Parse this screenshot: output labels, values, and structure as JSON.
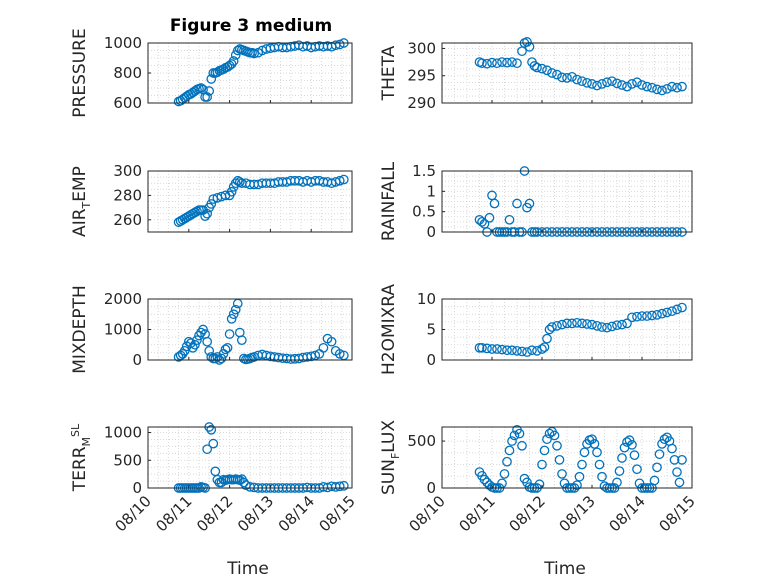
{
  "figure_title": "Figure 3 medium",
  "colors": {
    "marker": "#0072BD",
    "axis": "#262626",
    "grid": "#d9d9d9"
  },
  "chart_data": [
    {
      "type": "scatter",
      "title": "Figure 3 medium",
      "ylabel_main": "PRESSURE",
      "ylabel_sub": "",
      "xlabel": "",
      "xlim": [
        "08/10",
        "08/15"
      ],
      "ylim": [
        600,
        1000
      ],
      "yticks": [
        600,
        800,
        1000
      ],
      "xticks": [
        "08/10",
        "08/11",
        "08/12",
        "08/13",
        "08/14",
        "08/15"
      ],
      "grid": "on",
      "x": [
        0.75,
        0.8,
        0.85,
        0.9,
        0.95,
        1.0,
        1.05,
        1.1,
        1.15,
        1.2,
        1.25,
        1.3,
        1.35,
        1.4,
        1.45,
        1.5,
        1.55,
        1.6,
        1.65,
        1.7,
        1.75,
        1.8,
        1.85,
        1.9,
        1.95,
        2.0,
        2.05,
        2.1,
        2.15,
        2.2,
        2.25,
        2.3,
        2.35,
        2.4,
        2.45,
        2.5,
        2.55,
        2.6,
        2.7,
        2.8,
        2.9,
        3.0,
        3.1,
        3.2,
        3.3,
        3.4,
        3.5,
        3.6,
        3.7,
        3.8,
        3.9,
        4.0,
        4.1,
        4.2,
        4.3,
        4.4,
        4.5,
        4.6,
        4.7,
        4.8
      ],
      "y": [
        610,
        615,
        625,
        635,
        645,
        655,
        660,
        670,
        680,
        690,
        695,
        700,
        690,
        640,
        640,
        680,
        760,
        800,
        800,
        805,
        815,
        820,
        825,
        835,
        840,
        850,
        860,
        880,
        920,
        950,
        960,
        955,
        950,
        945,
        940,
        935,
        935,
        930,
        935,
        950,
        960,
        965,
        970,
        975,
        970,
        970,
        975,
        980,
        985,
        975,
        980,
        970,
        975,
        980,
        975,
        980,
        975,
        985,
        990,
        1000
      ]
    },
    {
      "type": "scatter",
      "title": "",
      "ylabel_main": "THETA",
      "ylabel_sub": "",
      "xlabel": "",
      "xlim": [
        "08/10",
        "08/15"
      ],
      "ylim": [
        290,
        301
      ],
      "yticks": [
        290,
        295,
        300
      ],
      "xticks": [
        "08/10",
        "08/11",
        "08/12",
        "08/13",
        "08/14",
        "08/15"
      ],
      "grid": "on",
      "x": [
        0.75,
        0.8,
        0.9,
        1.0,
        1.1,
        1.2,
        1.3,
        1.4,
        1.5,
        1.6,
        1.65,
        1.7,
        1.75,
        1.8,
        1.85,
        1.9,
        2.0,
        2.1,
        2.2,
        2.3,
        2.4,
        2.5,
        2.6,
        2.7,
        2.8,
        2.9,
        3.0,
        3.1,
        3.2,
        3.3,
        3.4,
        3.5,
        3.6,
        3.7,
        3.8,
        3.9,
        4.0,
        4.1,
        4.2,
        4.3,
        4.4,
        4.5,
        4.6,
        4.7,
        4.8
      ],
      "y": [
        297.5,
        297.3,
        297.2,
        297.4,
        297.3,
        297.5,
        297.4,
        297.5,
        297.3,
        299.5,
        301,
        301.2,
        300.3,
        297.5,
        296.8,
        296.5,
        296.3,
        296.0,
        295.5,
        295.2,
        294.7,
        294.6,
        294.8,
        294.3,
        294.0,
        293.7,
        293.5,
        293.2,
        293.5,
        293.8,
        294.0,
        293.6,
        293.3,
        293.0,
        293.5,
        293.8,
        293.3,
        293.0,
        292.8,
        292.5,
        292.3,
        292.6,
        293.0,
        292.8,
        293.0
      ]
    },
    {
      "type": "scatter",
      "title": "",
      "ylabel_main": "AIR",
      "ylabel_sub": "T",
      "ylabel_rest": "EMP",
      "xlabel": "",
      "xlim": [
        "08/10",
        "08/15"
      ],
      "ylim": [
        250,
        300
      ],
      "yticks": [
        260,
        280,
        300
      ],
      "xticks": [
        "08/10",
        "08/11",
        "08/12",
        "08/13",
        "08/14",
        "08/15"
      ],
      "grid": "on",
      "x": [
        0.75,
        0.8,
        0.85,
        0.9,
        0.95,
        1.0,
        1.05,
        1.1,
        1.15,
        1.2,
        1.25,
        1.3,
        1.35,
        1.4,
        1.45,
        1.5,
        1.55,
        1.6,
        1.7,
        1.8,
        1.9,
        2.0,
        2.05,
        2.1,
        2.15,
        2.2,
        2.25,
        2.3,
        2.4,
        2.5,
        2.6,
        2.7,
        2.8,
        2.9,
        3.0,
        3.1,
        3.2,
        3.3,
        3.4,
        3.5,
        3.6,
        3.7,
        3.8,
        3.9,
        4.0,
        4.1,
        4.2,
        4.3,
        4.4,
        4.5,
        4.6,
        4.7,
        4.8
      ],
      "y": [
        258,
        259,
        260,
        261,
        262,
        263,
        264,
        265,
        266,
        267,
        268,
        268,
        268,
        263,
        265,
        270,
        273,
        277,
        278,
        279,
        280,
        280,
        283,
        287,
        290,
        292,
        291,
        290,
        290,
        289,
        289,
        289,
        290,
        290,
        290,
        290,
        291,
        291,
        291,
        292,
        292,
        292,
        291,
        292,
        291,
        292,
        292,
        291,
        291,
        290,
        291,
        292,
        293
      ]
    },
    {
      "type": "scatter",
      "title": "",
      "ylabel_main": "RAINFALL",
      "ylabel_sub": "",
      "xlabel": "",
      "xlim": [
        "08/10",
        "08/15"
      ],
      "ylim": [
        0,
        1.5
      ],
      "yticks": [
        0,
        0.5,
        1,
        1.5
      ],
      "xticks": [
        "08/10",
        "08/11",
        "08/12",
        "08/13",
        "08/14",
        "08/15"
      ],
      "grid": "on",
      "x": [
        0.75,
        0.8,
        0.85,
        0.9,
        0.95,
        1.0,
        1.05,
        1.1,
        1.15,
        1.2,
        1.25,
        1.3,
        1.35,
        1.4,
        1.45,
        1.5,
        1.55,
        1.6,
        1.65,
        1.7,
        1.75,
        1.8,
        1.85,
        1.9,
        2.0,
        2.1,
        2.2,
        2.3,
        2.4,
        2.5,
        2.6,
        2.7,
        2.8,
        2.9,
        3.0,
        3.1,
        3.2,
        3.3,
        3.4,
        3.5,
        3.6,
        3.7,
        3.8,
        3.9,
        4.0,
        4.1,
        4.2,
        4.3,
        4.4,
        4.5,
        4.6,
        4.7,
        4.8
      ],
      "y": [
        0.3,
        0.25,
        0.2,
        0,
        0.35,
        0.9,
        0.7,
        0,
        0,
        0,
        0,
        0,
        0.3,
        0,
        0,
        0.7,
        0,
        0,
        1.5,
        0.6,
        0.7,
        0,
        0,
        0,
        0,
        0,
        0,
        0,
        0,
        0,
        0,
        0,
        0,
        0,
        0,
        0,
        0,
        0,
        0,
        0,
        0,
        0,
        0,
        0,
        0,
        0,
        0,
        0,
        0,
        0,
        0,
        0,
        0
      ]
    },
    {
      "type": "scatter",
      "title": "",
      "ylabel_main": "MIXDEPTH",
      "ylabel_sub": "",
      "xlabel": "",
      "xlim": [
        "08/10",
        "08/15"
      ],
      "ylim": [
        0,
        2000
      ],
      "yticks": [
        0,
        1000,
        2000
      ],
      "xticks": [
        "08/10",
        "08/11",
        "08/12",
        "08/13",
        "08/14",
        "08/15"
      ],
      "grid": "on",
      "x": [
        0.75,
        0.8,
        0.85,
        0.9,
        0.95,
        1.0,
        1.05,
        1.1,
        1.15,
        1.2,
        1.25,
        1.3,
        1.35,
        1.4,
        1.45,
        1.5,
        1.55,
        1.6,
        1.65,
        1.7,
        1.75,
        1.8,
        1.85,
        1.9,
        1.95,
        2.0,
        2.05,
        2.1,
        2.15,
        2.2,
        2.25,
        2.3,
        2.35,
        2.4,
        2.45,
        2.5,
        2.55,
        2.6,
        2.7,
        2.8,
        2.9,
        3.0,
        3.1,
        3.2,
        3.3,
        3.4,
        3.5,
        3.6,
        3.7,
        3.8,
        3.9,
        4.0,
        4.1,
        4.2,
        4.3,
        4.4,
        4.5,
        4.6,
        4.7,
        4.8
      ],
      "y": [
        100,
        150,
        200,
        300,
        450,
        600,
        550,
        400,
        500,
        650,
        800,
        900,
        1000,
        850,
        600,
        300,
        100,
        50,
        50,
        100,
        0,
        50,
        200,
        350,
        400,
        850,
        1350,
        1500,
        1650,
        1850,
        900,
        650,
        50,
        20,
        30,
        50,
        80,
        100,
        150,
        180,
        150,
        120,
        100,
        80,
        60,
        50,
        30,
        40,
        50,
        80,
        100,
        120,
        150,
        200,
        400,
        700,
        600,
        300,
        200,
        150
      ]
    },
    {
      "type": "scatter",
      "title": "",
      "ylabel_main": "H2OMIXRA",
      "ylabel_sub": "",
      "xlabel": "",
      "xlim": [
        "08/10",
        "08/15"
      ],
      "ylim": [
        0,
        10
      ],
      "yticks": [
        0,
        5,
        10
      ],
      "xticks": [
        "08/10",
        "08/11",
        "08/12",
        "08/13",
        "08/14",
        "08/15"
      ],
      "grid": "on",
      "x": [
        0.75,
        0.8,
        0.9,
        1.0,
        1.1,
        1.2,
        1.3,
        1.4,
        1.5,
        1.6,
        1.7,
        1.8,
        1.9,
        2.0,
        2.05,
        2.1,
        2.15,
        2.2,
        2.3,
        2.4,
        2.5,
        2.6,
        2.7,
        2.8,
        2.9,
        3.0,
        3.1,
        3.2,
        3.3,
        3.4,
        3.5,
        3.6,
        3.7,
        3.8,
        3.9,
        4.0,
        4.1,
        4.2,
        4.3,
        4.4,
        4.5,
        4.6,
        4.7,
        4.8
      ],
      "y": [
        2.0,
        2.0,
        1.9,
        1.8,
        1.8,
        1.7,
        1.6,
        1.6,
        1.5,
        1.4,
        1.3,
        1.6,
        1.5,
        1.8,
        2.1,
        3.5,
        5.0,
        5.4,
        5.6,
        5.8,
        6.0,
        6.0,
        6.1,
        6.0,
        5.9,
        5.8,
        5.6,
        5.4,
        5.3,
        5.5,
        5.7,
        5.8,
        6.0,
        7.0,
        7.1,
        7.2,
        7.2,
        7.3,
        7.4,
        7.6,
        7.8,
        8.0,
        8.3,
        8.6
      ]
    },
    {
      "type": "scatter",
      "title": "",
      "ylabel_main": "TERR",
      "ylabel_sub": "M",
      "ylabel_sup": "SL",
      "xlabel": "Time",
      "xlim": [
        "08/10",
        "08/15"
      ],
      "ylim": [
        0,
        1100
      ],
      "yticks": [
        0,
        500,
        1000
      ],
      "xticks": [
        "08/10",
        "08/11",
        "08/12",
        "08/13",
        "08/14",
        "08/15"
      ],
      "grid": "on",
      "x": [
        0.75,
        0.8,
        0.85,
        0.9,
        0.95,
        1.0,
        1.05,
        1.1,
        1.15,
        1.2,
        1.25,
        1.3,
        1.35,
        1.4,
        1.45,
        1.5,
        1.55,
        1.6,
        1.65,
        1.7,
        1.75,
        1.8,
        1.85,
        1.9,
        1.95,
        2.0,
        2.05,
        2.1,
        2.15,
        2.2,
        2.25,
        2.3,
        2.35,
        2.4,
        2.5,
        2.6,
        2.7,
        2.8,
        2.9,
        3.0,
        3.1,
        3.2,
        3.3,
        3.4,
        3.5,
        3.6,
        3.7,
        3.8,
        3.9,
        4.0,
        4.1,
        4.2,
        4.3,
        4.4,
        4.5,
        4.6,
        4.7,
        4.8
      ],
      "y": [
        0,
        0,
        0,
        0,
        0,
        0,
        0,
        0,
        0,
        0,
        0,
        20,
        10,
        0,
        700,
        1100,
        1050,
        800,
        300,
        150,
        100,
        100,
        150,
        140,
        150,
        160,
        150,
        150,
        160,
        150,
        140,
        160,
        100,
        50,
        20,
        10,
        0,
        0,
        0,
        0,
        0,
        0,
        0,
        0,
        0,
        0,
        0,
        0,
        10,
        0,
        0,
        0,
        20,
        10,
        30,
        20,
        30,
        40
      ]
    },
    {
      "type": "scatter",
      "title": "",
      "ylabel_main": "SUN",
      "ylabel_sub": "F",
      "ylabel_rest": "LUX",
      "xlabel": "Time",
      "xlim": [
        "08/10",
        "08/15"
      ],
      "ylim": [
        0,
        650
      ],
      "yticks": [
        0,
        500
      ],
      "xticks": [
        "08/10",
        "08/11",
        "08/12",
        "08/13",
        "08/14",
        "08/15"
      ],
      "grid": "on",
      "x": [
        0.75,
        0.8,
        0.85,
        0.9,
        0.95,
        1.0,
        1.05,
        1.1,
        1.15,
        1.2,
        1.25,
        1.3,
        1.35,
        1.4,
        1.45,
        1.5,
        1.55,
        1.6,
        1.65,
        1.7,
        1.75,
        1.8,
        1.85,
        1.9,
        1.95,
        2.0,
        2.05,
        2.1,
        2.15,
        2.2,
        2.25,
        2.3,
        2.35,
        2.4,
        2.45,
        2.5,
        2.55,
        2.6,
        2.65,
        2.7,
        2.75,
        2.8,
        2.85,
        2.9,
        2.95,
        3.0,
        3.05,
        3.1,
        3.15,
        3.2,
        3.25,
        3.3,
        3.35,
        3.4,
        3.45,
        3.5,
        3.55,
        3.6,
        3.65,
        3.7,
        3.75,
        3.8,
        3.85,
        3.9,
        3.95,
        4.0,
        4.05,
        4.1,
        4.15,
        4.2,
        4.25,
        4.3,
        4.35,
        4.4,
        4.45,
        4.5,
        4.55,
        4.6,
        4.65,
        4.7,
        4.75,
        4.8
      ],
      "y": [
        170,
        130,
        90,
        60,
        30,
        10,
        0,
        0,
        0,
        50,
        150,
        280,
        400,
        500,
        560,
        620,
        580,
        450,
        100,
        60,
        10,
        0,
        0,
        0,
        40,
        250,
        400,
        520,
        580,
        600,
        560,
        450,
        300,
        150,
        50,
        0,
        0,
        0,
        0,
        30,
        120,
        250,
        380,
        470,
        510,
        520,
        470,
        380,
        250,
        120,
        20,
        0,
        0,
        0,
        0,
        60,
        180,
        320,
        430,
        490,
        510,
        460,
        350,
        200,
        50,
        0,
        0,
        0,
        0,
        0,
        80,
        220,
        360,
        470,
        520,
        540,
        500,
        420,
        300,
        170,
        60,
        300
      ]
    }
  ]
}
